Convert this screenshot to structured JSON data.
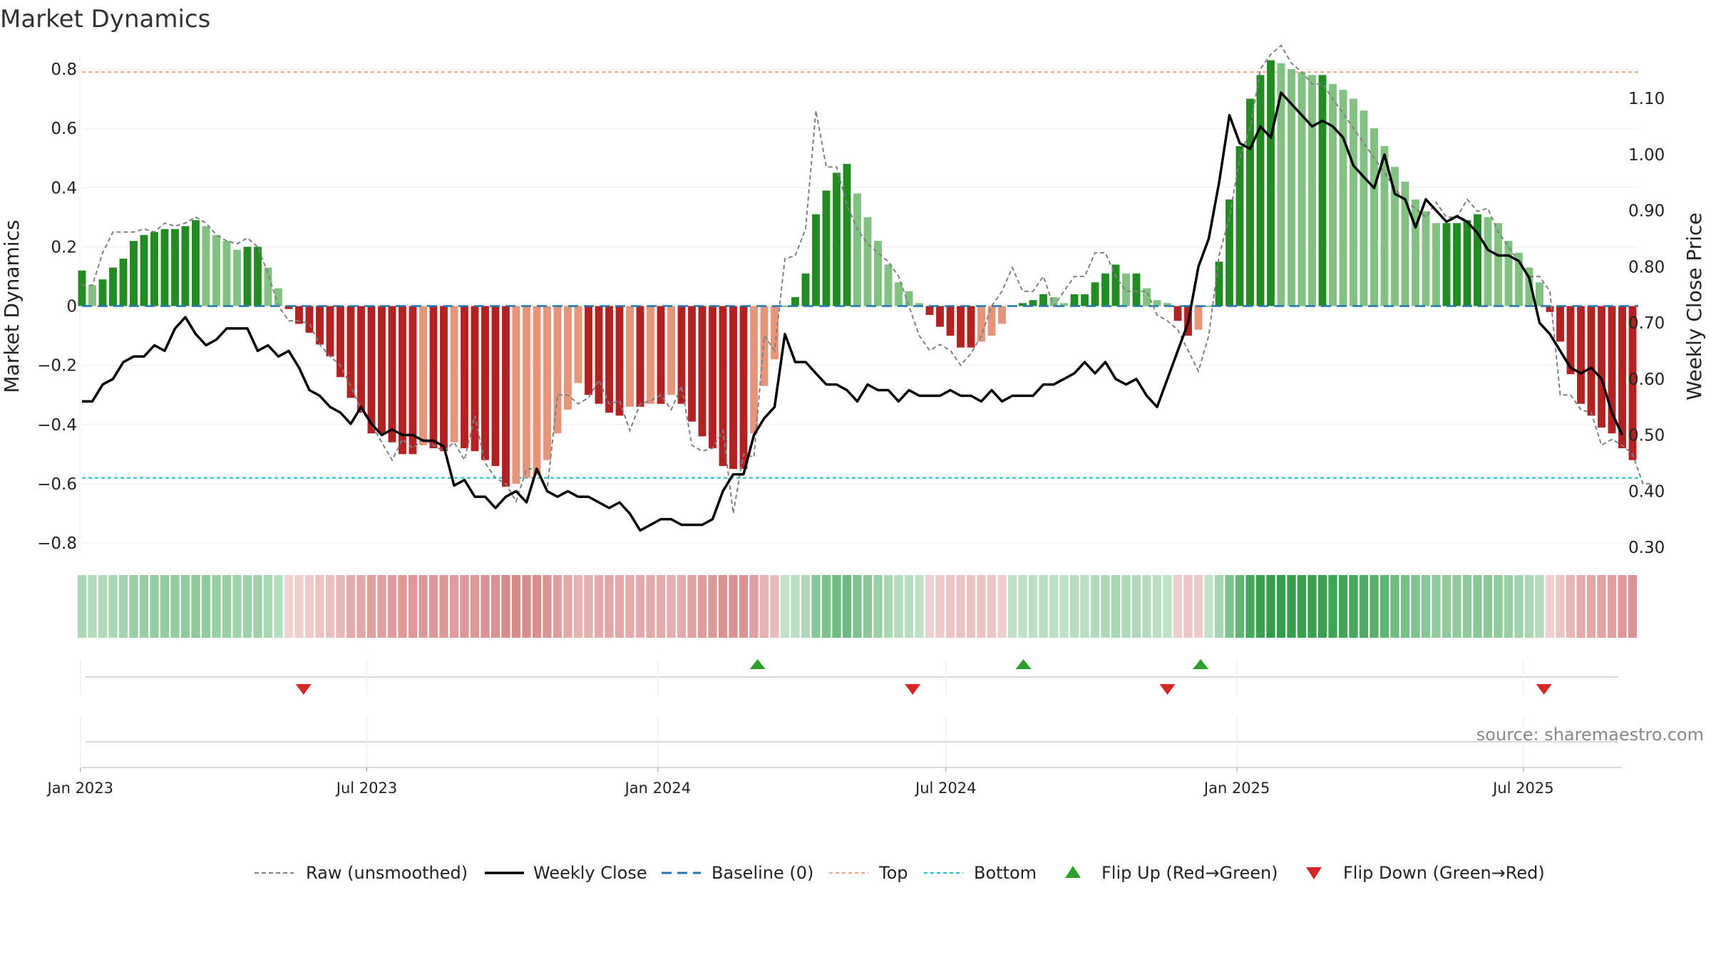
{
  "chart_data": {
    "type": "bar",
    "title": "Market Dynamics",
    "ylabel_left": "Market Dynamics",
    "ylabel_right": "Weekly Close Price",
    "ylim_left": [
      -0.9,
      0.9
    ],
    "ylim_right": [
      0.28,
      1.17
    ],
    "yticks_left": [
      "0.8",
      "0.6",
      "0.4",
      "0.2",
      "0",
      "−0.2",
      "−0.4",
      "−0.6",
      "−0.8"
    ],
    "yticks_left_values": [
      0.8,
      0.6,
      0.4,
      0.2,
      0,
      -0.2,
      -0.4,
      -0.6,
      -0.8
    ],
    "yticks_right": [
      "1.10",
      "1.00",
      "0.90",
      "0.80",
      "0.70",
      "0.60",
      "0.50",
      "0.40",
      "0.30"
    ],
    "yticks_right_values": [
      1.1,
      1.0,
      0.9,
      0.8,
      0.7,
      0.6,
      0.5,
      0.4,
      0.3
    ],
    "top_level": 0.79,
    "bottom_level": -0.58,
    "x_start": "2023-01-02",
    "x_end": "2025-09-08",
    "x_ticks": [
      {
        "date": "2023-01-01",
        "label": "Jan 2023"
      },
      {
        "date": "2023-07-01",
        "label": "Jul 2023"
      },
      {
        "date": "2024-01-01",
        "label": "Jan 2024"
      },
      {
        "date": "2024-07-01",
        "label": "Jul 2024"
      },
      {
        "date": "2025-01-01",
        "label": "Jan 2025"
      },
      {
        "date": "2025-07-01",
        "label": "Jul 2025"
      }
    ],
    "series": [
      {
        "name": "Raw (unsmoothed)",
        "values": [
          0.07,
          0.07,
          0.18,
          0.25,
          0.25,
          0.25,
          0.26,
          0.25,
          0.28,
          0.27,
          0.28,
          0.3,
          0.28,
          0.24,
          0.22,
          0.21,
          0.23,
          0.2,
          0.11,
          0,
          -0.05,
          -0.05,
          -0.06,
          -0.13,
          -0.17,
          -0.2,
          -0.27,
          -0.35,
          -0.4,
          -0.46,
          -0.52,
          -0.45,
          -0.48,
          -0.45,
          -0.47,
          -0.49,
          -0.46,
          -0.52,
          -0.37,
          -0.53,
          -0.58,
          -0.6,
          -0.66,
          -0.55,
          -0.55,
          -0.62,
          -0.3,
          -0.3,
          -0.33,
          -0.31,
          -0.25,
          -0.33,
          -0.32,
          -0.42,
          -0.33,
          -0.32,
          -0.3,
          -0.35,
          -0.27,
          -0.47,
          -0.49,
          -0.48,
          -0.42,
          -0.7,
          -0.5,
          -0.51,
          -0.1,
          -0.15,
          0.16,
          0.17,
          0.26,
          0.66,
          0.47,
          0.47,
          0.34,
          0.26,
          0.21,
          0.18,
          0.15,
          0.1,
          0,
          -0.1,
          -0.15,
          -0.13,
          -0.15,
          -0.2,
          -0.16,
          -0.1,
          0,
          0.05,
          0.13,
          0.05,
          0.05,
          0.1,
          0,
          0.05,
          0.1,
          0.1,
          0.18,
          0.18,
          0.1,
          0.05,
          0.05,
          0.05,
          -0.03,
          -0.05,
          -0.08,
          -0.15,
          -0.22,
          -0.1,
          0.17,
          0.3,
          0.5,
          0.6,
          0.8,
          0.85,
          0.88,
          0.82,
          0.79,
          0.75,
          0.75,
          0.7,
          0.65,
          0.6,
          0.55,
          0.5,
          0.45,
          0.4,
          0.35,
          0.33,
          0.3,
          0.35,
          0.3,
          0.3,
          0.36,
          0.32,
          0.33,
          0.25,
          0.2,
          0.15,
          0.1,
          0.1,
          0.05,
          -0.3,
          -0.3,
          -0.35,
          -0.36,
          -0.47,
          -0.45,
          -0.47,
          -0.5,
          -0.6,
          -0.6
        ]
      },
      {
        "name": "Weekly Close",
        "values": [
          0.56,
          0.56,
          0.59,
          0.6,
          0.63,
          0.64,
          0.64,
          0.66,
          0.65,
          0.69,
          0.71,
          0.68,
          0.66,
          0.67,
          0.69,
          0.69,
          0.69,
          0.65,
          0.66,
          0.64,
          0.65,
          0.62,
          0.58,
          0.57,
          0.55,
          0.54,
          0.52,
          0.55,
          0.52,
          0.5,
          0.51,
          0.5,
          0.5,
          0.49,
          0.49,
          0.48,
          0.41,
          0.42,
          0.39,
          0.39,
          0.37,
          0.39,
          0.4,
          0.38,
          0.44,
          0.4,
          0.39,
          0.4,
          0.39,
          0.39,
          0.38,
          0.37,
          0.38,
          0.36,
          0.33,
          0.34,
          0.35,
          0.35,
          0.34,
          0.34,
          0.34,
          0.35,
          0.4,
          0.43,
          0.43,
          0.5,
          0.53,
          0.55,
          0.68,
          0.63,
          0.63,
          0.61,
          0.59,
          0.59,
          0.58,
          0.56,
          0.59,
          0.58,
          0.58,
          0.56,
          0.58,
          0.57,
          0.57,
          0.57,
          0.58,
          0.57,
          0.57,
          0.56,
          0.58,
          0.56,
          0.57,
          0.57,
          0.57,
          0.59,
          0.59,
          0.6,
          0.61,
          0.63,
          0.61,
          0.63,
          0.6,
          0.59,
          0.6,
          0.57,
          0.55,
          0.6,
          0.65,
          0.7,
          0.8,
          0.85,
          0.95,
          1.07,
          1.02,
          1.01,
          1.05,
          1.03,
          1.11,
          1.09,
          1.07,
          1.05,
          1.06,
          1.05,
          1.03,
          0.98,
          0.96,
          0.94,
          1.0,
          0.93,
          0.92,
          0.87,
          0.92,
          0.9,
          0.88,
          0.89,
          0.88,
          0.86,
          0.83,
          0.82,
          0.82,
          0.81,
          0.78,
          0.7,
          0.68,
          0.65,
          0.62,
          0.61,
          0.62,
          0.6,
          0.54,
          0.5
        ]
      },
      {
        "name": "Market Dynamics",
        "values": [
          0.12,
          0.07,
          0.09,
          0.13,
          0.16,
          0.22,
          0.24,
          0.25,
          0.26,
          0.26,
          0.27,
          0.29,
          0.27,
          0.24,
          0.22,
          0.19,
          0.2,
          0.2,
          0.13,
          0.06,
          -0.01,
          -0.06,
          -0.09,
          -0.13,
          -0.17,
          -0.24,
          -0.31,
          -0.36,
          -0.43,
          -0.43,
          -0.46,
          -0.5,
          -0.5,
          -0.47,
          -0.48,
          -0.49,
          -0.46,
          -0.48,
          -0.49,
          -0.52,
          -0.54,
          -0.61,
          -0.6,
          -0.58,
          -0.57,
          -0.52,
          -0.43,
          -0.35,
          -0.26,
          -0.3,
          -0.33,
          -0.36,
          -0.37,
          -0.34,
          -0.34,
          -0.33,
          -0.33,
          -0.3,
          -0.33,
          -0.39,
          -0.44,
          -0.48,
          -0.54,
          -0.55,
          -0.55,
          -0.43,
          -0.27,
          -0.18,
          0,
          0.03,
          0.11,
          0.31,
          0.39,
          0.45,
          0.48,
          0.38,
          0.3,
          0.22,
          0.14,
          0.08,
          0.05,
          0.01,
          -0.03,
          -0.07,
          -0.1,
          -0.14,
          -0.14,
          -0.12,
          -0.1,
          -0.06,
          0,
          0.01,
          0.02,
          0.04,
          0.03,
          0.01,
          0.04,
          0.04,
          0.08,
          0.11,
          0.14,
          0.11,
          0.11,
          0.06,
          0.02,
          0.01,
          -0.05,
          -0.1,
          -0.08,
          0,
          0.15,
          0.36,
          0.54,
          0.7,
          0.78,
          0.83,
          0.82,
          0.8,
          0.79,
          0.78,
          0.78,
          0.75,
          0.73,
          0.7,
          0.66,
          0.6,
          0.54,
          0.47,
          0.42,
          0.36,
          0.32,
          0.28,
          0.28,
          0.28,
          0.29,
          0.31,
          0.3,
          0.28,
          0.22,
          0.18,
          0.13,
          0.08,
          -0.02,
          -0.12,
          -0.23,
          -0.33,
          -0.37,
          -0.41,
          -0.43,
          -0.48,
          -0.52
        ]
      }
    ],
    "baseline_label": "Baseline (0)",
    "top_label": "Top",
    "bottom_label": "Bottom",
    "flip_up_dates": [
      "2024-03-04",
      "2024-08-19",
      "2024-12-09"
    ],
    "flip_down_dates": [
      "2023-05-22",
      "2024-06-10",
      "2024-11-18",
      "2025-07-14"
    ],
    "flip_up_label": "Flip Up (Red→Green)",
    "flip_down_label": "Flip Down (Green→Red)",
    "colors": {
      "strong_green": "#228B22",
      "light_green": "#82c182",
      "strong_red": "#b22222",
      "light_red": "#e6957a",
      "weekly_close": "#000000",
      "raw": "#808080",
      "baseline": "#1f77b4",
      "top": "#f4a582",
      "bottom": "#17becf",
      "flip_up": "#2ca02c",
      "flip_down": "#d62728"
    },
    "legend_position": "bottom-center",
    "source": "source: sharemaestro.com"
  }
}
